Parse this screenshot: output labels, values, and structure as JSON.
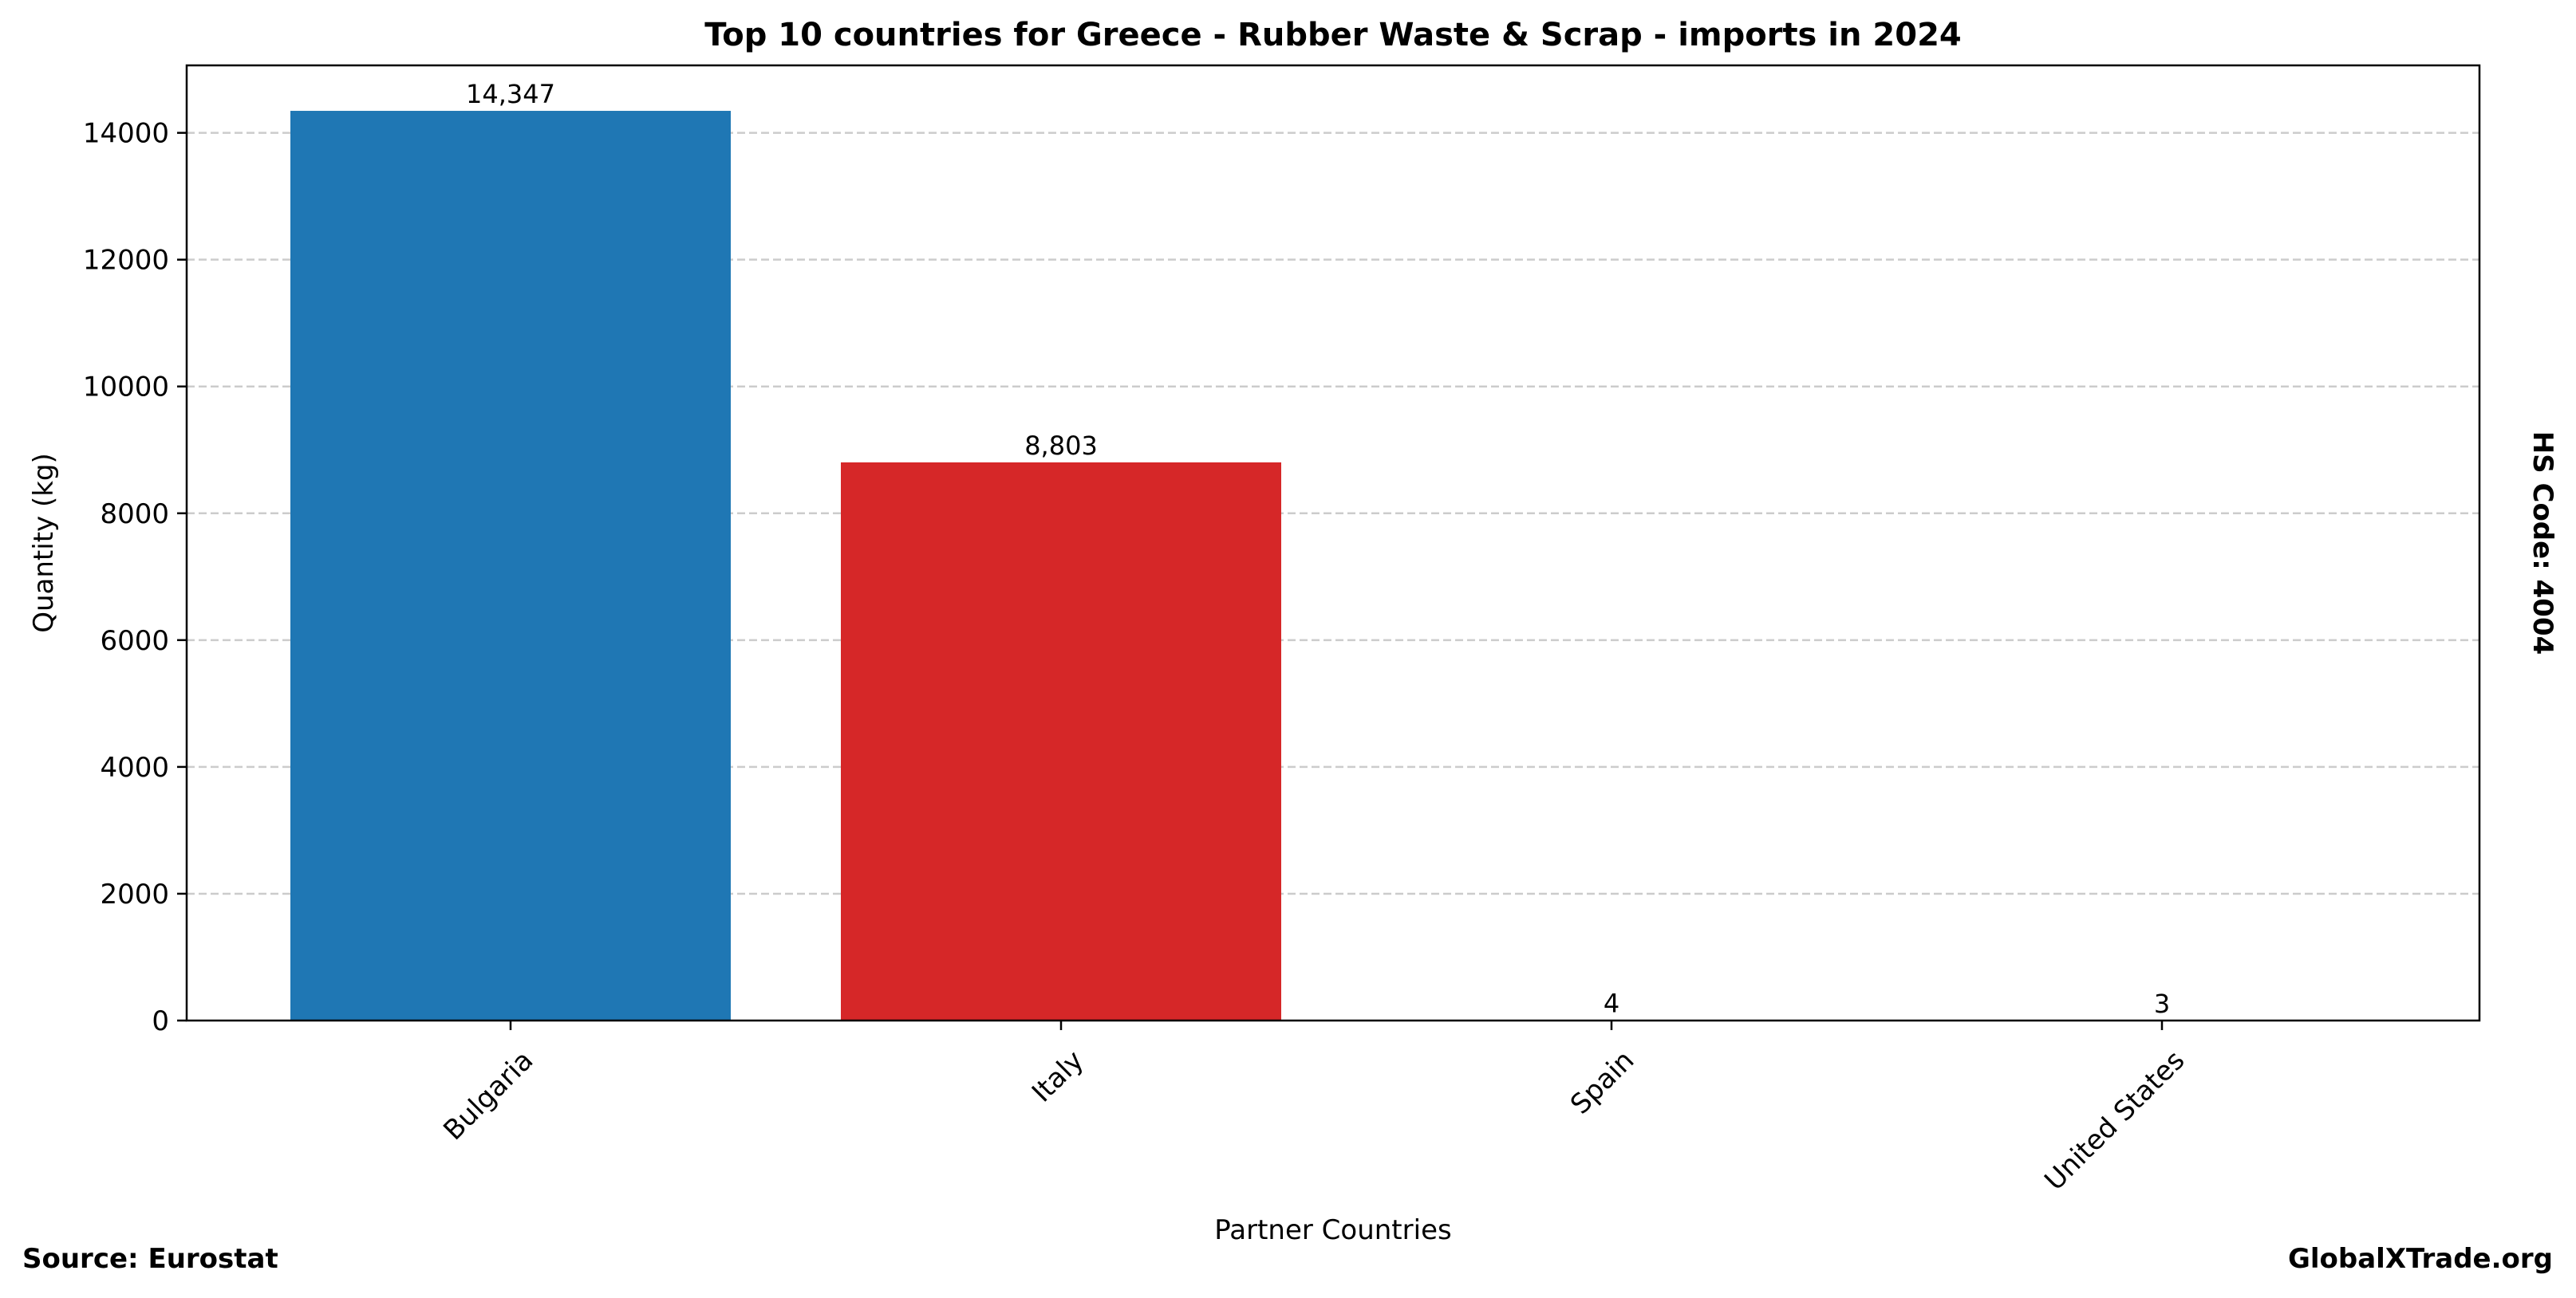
{
  "chart_data": {
    "type": "bar",
    "title": "Top 10 countries for Greece - Rubber Waste & Scrap - imports in 2024",
    "xlabel": "Partner Countries",
    "ylabel": "Quantity (kg)",
    "side_label": "HS Code: 4004",
    "source": "Source: Eurostat",
    "brand": "GlobalXTrade.org",
    "categories": [
      "Bulgaria",
      "Italy",
      "Spain",
      "United States"
    ],
    "values": [
      14347,
      8803,
      4,
      3
    ],
    "value_labels": [
      "14,347",
      "8,803",
      "4",
      "3"
    ],
    "colors": [
      "#1f77b4",
      "#d62728",
      "#2ca02c",
      "#ff7f0e"
    ],
    "ylim": [
      0,
      15064
    ],
    "yticks": [
      0,
      2000,
      4000,
      6000,
      8000,
      10000,
      12000,
      14000
    ],
    "ytick_labels": [
      "0",
      "2000",
      "4000",
      "6000",
      "8000",
      "10000",
      "12000",
      "14000"
    ],
    "grid": true,
    "grid_axis": "y",
    "grid_style": "dashed",
    "legend": "none"
  }
}
